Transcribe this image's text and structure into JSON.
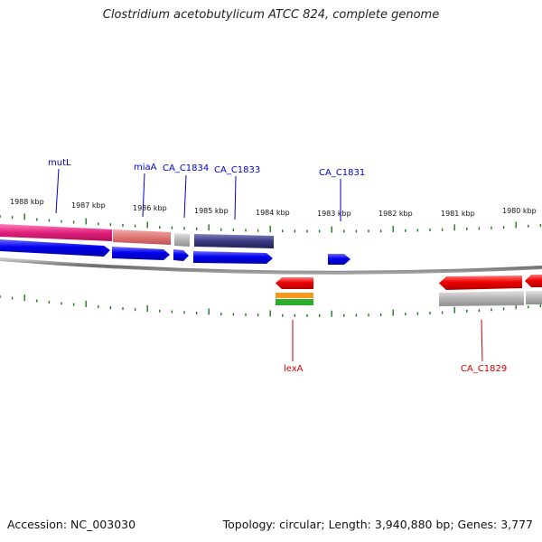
{
  "title": "Clostridium acetobutylicum ATCC 824, complete genome",
  "footer": {
    "accession": "Accession: NC_003030",
    "summary": "Topology: circular; Length: 3,940,880 bp; Genes: 3,777"
  },
  "scale_labels": [
    "1988 kbp",
    "1987 kbp",
    "1986 kbp",
    "1985 kbp",
    "1984 kbp",
    "1983 kbp",
    "1982 kbp",
    "1981 kbp",
    "1980 kbp"
  ],
  "gene_labels": {
    "mutL": "mutL",
    "miaA": "miaA",
    "ca_c1834": "CA_C1834",
    "ca_c1833": "CA_C1833",
    "ca_c1831": "CA_C1831",
    "lexA": "lexA",
    "ca_c1829": "CA_C1829"
  },
  "colors": {
    "forward_label": "#0000cc",
    "reverse_label": "#cc0000",
    "tick": "#1a7a1a",
    "backbone": "#777777",
    "cds": "#0000ee",
    "reverse_cds": "#ee0000",
    "magenta": "#e0207a",
    "salmon": "#e07878",
    "purple": "#3a3a80",
    "grey": "#b4b4b4",
    "orange": "#f39a1e",
    "green": "#2cae2c"
  }
}
